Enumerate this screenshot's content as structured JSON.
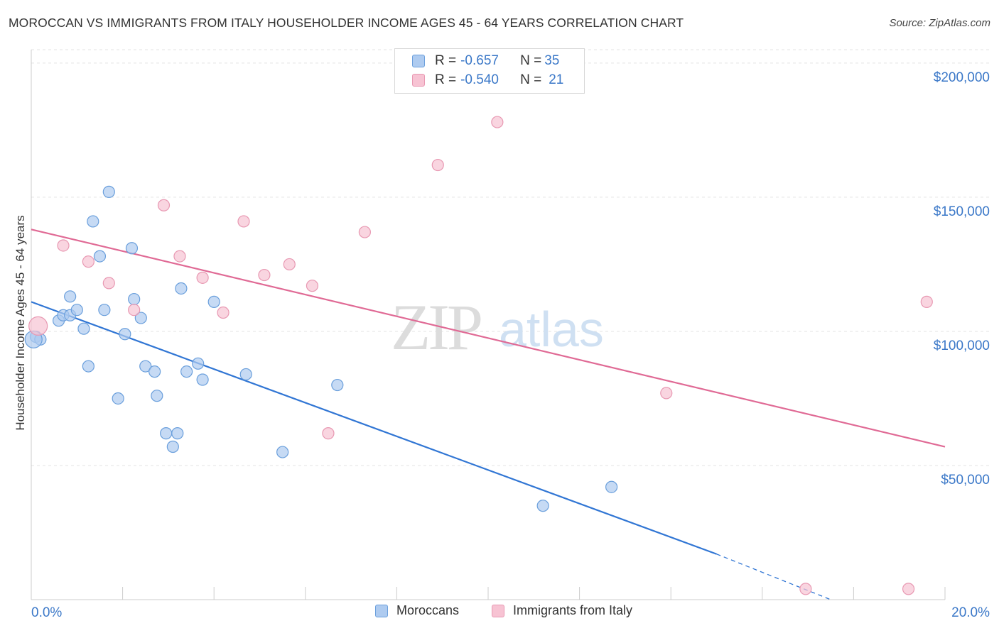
{
  "title": "MOROCCAN VS IMMIGRANTS FROM ITALY HOUSEHOLDER INCOME AGES 45 - 64 YEARS CORRELATION CHART",
  "source": "Source: ZipAtlas.com",
  "watermark": {
    "zip": "ZIP",
    "atlas": "atlas"
  },
  "legend": {
    "rows": [
      {
        "r_label": "R = ",
        "r_value": "-0.657",
        "n_label": "N = ",
        "n_value": "35"
      },
      {
        "r_label": "R = ",
        "r_value": "-0.540",
        "n_label": "N = ",
        "n_value": "21"
      }
    ]
  },
  "bottom_legend": [
    "Moroccans",
    "Immigrants from Italy"
  ],
  "colors": {
    "blue_fill": "#aecbf0",
    "blue_stroke": "#6a9fdc",
    "blue_line": "#3176d4",
    "pink_fill": "#f7c3d3",
    "pink_stroke": "#e898b2",
    "pink_line": "#e06a95",
    "axis_text": "#3b78c8",
    "grid": "#e3e3e3"
  },
  "chart_data": {
    "type": "scatter",
    "title": "MOROCCAN VS IMMIGRANTS FROM ITALY HOUSEHOLDER INCOME AGES 45 - 64 YEARS CORRELATION CHART",
    "xlabel": "",
    "ylabel": "Householder Income Ages 45 - 64 years",
    "xlim": [
      0,
      20
    ],
    "ylim": [
      0,
      205000
    ],
    "x_tick_labels": [
      "0.0%",
      "20.0%"
    ],
    "y_ticks": [
      50000,
      100000,
      150000,
      200000
    ],
    "y_tick_labels": [
      "$50,000",
      "$100,000",
      "$150,000",
      "$200,000"
    ],
    "grid": true,
    "legend_position": "top-center",
    "series": [
      {
        "name": "Moroccans",
        "color": "#aecbf0",
        "r": -0.657,
        "n": 35,
        "points": [
          [
            0.1,
            98000
          ],
          [
            0.2,
            97000
          ],
          [
            0.6,
            104000
          ],
          [
            0.7,
            106000
          ],
          [
            0.85,
            106000
          ],
          [
            0.85,
            113000
          ],
          [
            1.0,
            108000
          ],
          [
            1.15,
            101000
          ],
          [
            1.25,
            87000
          ],
          [
            1.35,
            141000
          ],
          [
            1.5,
            128000
          ],
          [
            1.6,
            108000
          ],
          [
            1.7,
            152000
          ],
          [
            1.9,
            75000
          ],
          [
            2.05,
            99000
          ],
          [
            2.2,
            131000
          ],
          [
            2.25,
            112000
          ],
          [
            2.4,
            105000
          ],
          [
            2.5,
            87000
          ],
          [
            2.7,
            85000
          ],
          [
            2.75,
            76000
          ],
          [
            2.95,
            62000
          ],
          [
            3.1,
            57000
          ],
          [
            3.2,
            62000
          ],
          [
            3.28,
            116000
          ],
          [
            3.4,
            85000
          ],
          [
            3.65,
            88000
          ],
          [
            3.75,
            82000
          ],
          [
            4.0,
            111000
          ],
          [
            4.7,
            84000
          ],
          [
            5.5,
            55000
          ],
          [
            6.7,
            80000
          ],
          [
            11.2,
            35000
          ],
          [
            12.7,
            42000
          ],
          [
            0.05,
            97000
          ]
        ],
        "trend": {
          "x": [
            0,
            15
          ],
          "y": [
            111000,
            17000
          ]
        },
        "trend_extension": {
          "x": [
            15,
            17.5
          ],
          "y": [
            17000,
            0
          ]
        }
      },
      {
        "name": "Immigrants from Italy",
        "color": "#f7c3d3",
        "r": -0.54,
        "n": 21,
        "points": [
          [
            0.15,
            102000
          ],
          [
            0.7,
            132000
          ],
          [
            1.25,
            126000
          ],
          [
            1.7,
            118000
          ],
          [
            2.25,
            108000
          ],
          [
            2.9,
            147000
          ],
          [
            3.25,
            128000
          ],
          [
            3.75,
            120000
          ],
          [
            4.2,
            107000
          ],
          [
            4.65,
            141000
          ],
          [
            5.1,
            121000
          ],
          [
            5.65,
            125000
          ],
          [
            6.15,
            117000
          ],
          [
            6.5,
            62000
          ],
          [
            7.3,
            137000
          ],
          [
            8.9,
            162000
          ],
          [
            10.2,
            178000
          ],
          [
            13.9,
            77000
          ],
          [
            16.95,
            4000
          ],
          [
            19.2,
            4000
          ],
          [
            19.6,
            111000
          ]
        ],
        "trend": {
          "x": [
            0,
            20
          ],
          "y": [
            138000,
            57000
          ]
        }
      }
    ]
  }
}
